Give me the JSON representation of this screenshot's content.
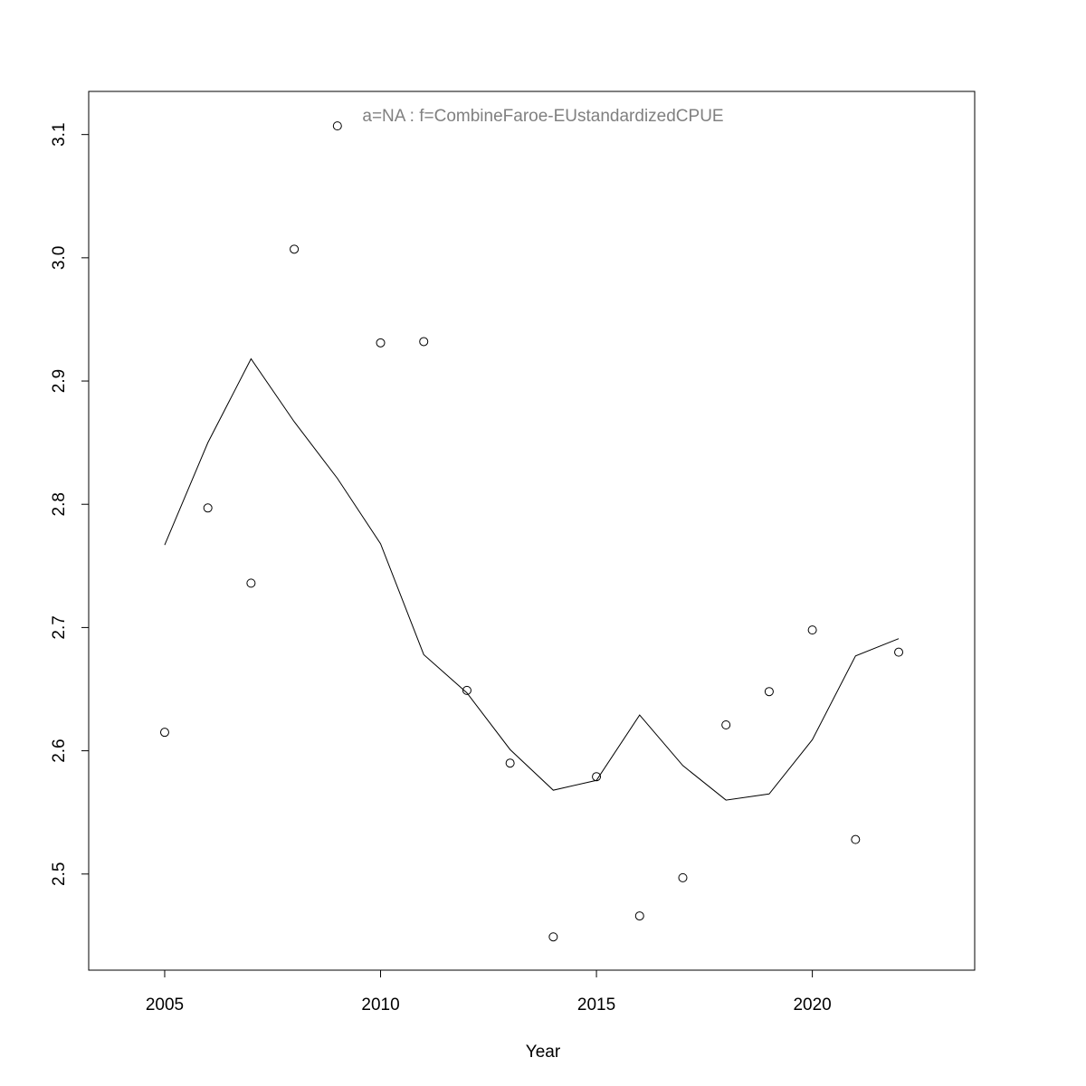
{
  "chart_data": {
    "type": "scatter-line",
    "title": "a=NA  :  f=CombineFaroe-EUstandardizedCPUE",
    "x_label": "Year",
    "x": [
      2005,
      2006,
      2007,
      2008,
      2009,
      2010,
      2011,
      2012,
      2013,
      2014,
      2015,
      2016,
      2017,
      2018,
      2019,
      2020,
      2021,
      2022
    ],
    "series": [
      {
        "style": "points",
        "color": "#000000",
        "values": [
          2.615,
          2.797,
          2.736,
          3.007,
          3.107,
          2.931,
          2.932,
          2.649,
          2.59,
          2.449,
          2.579,
          2.466,
          2.497,
          2.621,
          2.648,
          2.698,
          2.528,
          2.68
        ]
      },
      {
        "style": "line",
        "color": "#000000",
        "values": [
          2.767,
          2.85,
          2.918,
          2.867,
          2.821,
          2.768,
          2.678,
          2.647,
          2.601,
          2.568,
          2.576,
          2.629,
          2.588,
          2.56,
          2.565,
          2.609,
          2.677,
          2.691
        ]
      }
    ],
    "xlim": [
      2003.24,
      2023.76
    ],
    "xticks": [
      2005,
      2010,
      2015,
      2020
    ],
    "ylim": [
      2.422,
      3.135
    ],
    "yticks": [
      2.5,
      2.6,
      2.7,
      2.8,
      2.9,
      {
        "value": 3,
        "label": "3.0"
      },
      3.1
    ],
    "title_color": "#808080"
  }
}
